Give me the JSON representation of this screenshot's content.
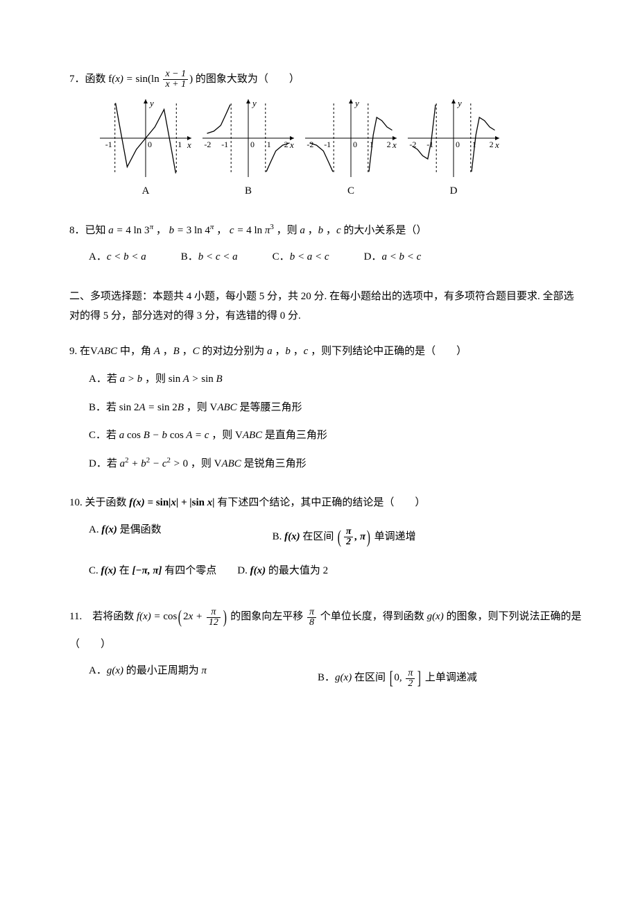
{
  "q7": {
    "prefix": "7．函数 ",
    "fn_lhs": "f(x) = sin(ln",
    "frac_num": "x − 1",
    "frac_den": "x + 1",
    "fn_rhs": ") 的图象大致为（　　）",
    "charts": {
      "width": 140,
      "height": 120,
      "axis_color": "#000000",
      "curve_color": "#000000",
      "asymptote_dash": "3,3",
      "panels": [
        {
          "label": "A",
          "x_ticks": [
            {
              "v": -1,
              "t": "-1"
            },
            {
              "v": 1,
              "t": "1"
            }
          ],
          "asymptotes": [
            -1,
            1
          ],
          "x_range": [
            -1.4,
            1.4
          ],
          "curve": [
            {
              "x": -0.98,
              "y": 1.1
            },
            {
              "x": -0.85,
              "y": 0.4
            },
            {
              "x": -0.6,
              "y": -0.9
            },
            {
              "x": -0.3,
              "y": -0.35
            },
            {
              "x": 0,
              "y": 0
            },
            {
              "x": 0.3,
              "y": 0.35
            },
            {
              "x": 0.6,
              "y": 0.9
            },
            {
              "x": 0.85,
              "y": -0.4
            },
            {
              "x": 0.98,
              "y": -1.1
            }
          ]
        },
        {
          "label": "B",
          "x_ticks": [
            {
              "v": -2,
              "t": "-2"
            },
            {
              "v": -1,
              "t": "-1"
            },
            {
              "v": 1,
              "t": "1"
            },
            {
              "v": 2,
              "t": "2"
            }
          ],
          "asymptotes": [
            -1,
            1
          ],
          "x_range": [
            -2.5,
            2.5
          ],
          "left_curve": [
            {
              "x": -2.4,
              "y": 0.15
            },
            {
              "x": -2.0,
              "y": 0.22
            },
            {
              "x": -1.6,
              "y": 0.4
            },
            {
              "x": -1.3,
              "y": 0.75
            },
            {
              "x": -1.05,
              "y": 1.05
            }
          ],
          "right_curve": [
            {
              "x": 1.05,
              "y": -1.05
            },
            {
              "x": 1.3,
              "y": -0.75
            },
            {
              "x": 1.6,
              "y": -0.4
            },
            {
              "x": 2.0,
              "y": -0.22
            },
            {
              "x": 2.4,
              "y": -0.15
            }
          ]
        },
        {
          "label": "C",
          "x_ticks": [
            {
              "v": -2,
              "t": "-2"
            },
            {
              "v": -1,
              "t": "-1"
            },
            {
              "v": 1,
              "t": "1"
            },
            {
              "v": 2,
              "t": "2"
            }
          ],
          "asymptotes": [
            -1,
            1
          ],
          "x_range": [
            -2.5,
            2.5
          ],
          "left_curve": [
            {
              "x": -2.4,
              "y": -0.15
            },
            {
              "x": -2.0,
              "y": -0.22
            },
            {
              "x": -1.6,
              "y": -0.4
            },
            {
              "x": -1.3,
              "y": -0.75
            },
            {
              "x": -1.05,
              "y": -1.05
            }
          ],
          "right_curve": [
            {
              "x": 1.05,
              "y": -1.05
            },
            {
              "x": 1.3,
              "y": 0.1
            },
            {
              "x": 1.5,
              "y": 0.65
            },
            {
              "x": 1.8,
              "y": 0.55
            },
            {
              "x": 2.1,
              "y": 0.35
            },
            {
              "x": 2.4,
              "y": 0.25
            }
          ]
        },
        {
          "label": "D",
          "x_ticks": [
            {
              "v": -2,
              "t": "-2"
            },
            {
              "v": -1,
              "t": "-1"
            },
            {
              "v": 1,
              "t": "1"
            },
            {
              "v": 2,
              "t": "2"
            }
          ],
          "asymptotes": [
            -1,
            1
          ],
          "x_range": [
            -2.5,
            2.5
          ],
          "left_curve": [
            {
              "x": -2.4,
              "y": -0.25
            },
            {
              "x": -2.1,
              "y": -0.35
            },
            {
              "x": -1.8,
              "y": -0.55
            },
            {
              "x": -1.5,
              "y": -0.65
            },
            {
              "x": -1.3,
              "y": -0.1
            },
            {
              "x": -1.05,
              "y": 1.05
            }
          ],
          "right_curve": [
            {
              "x": 1.05,
              "y": -1.05
            },
            {
              "x": 1.3,
              "y": 0.1
            },
            {
              "x": 1.5,
              "y": 0.65
            },
            {
              "x": 1.8,
              "y": 0.55
            },
            {
              "x": 2.1,
              "y": 0.35
            },
            {
              "x": 2.4,
              "y": 0.25
            }
          ]
        }
      ]
    }
  },
  "q8": {
    "text_pre": "8．已知 ",
    "a": "a = 4 ln 3^π",
    "b": "b = 3 ln 4^π",
    "c": "c = 4 ln π^3",
    "text_post": "，则 a ，b ，c 的大小关系是（）",
    "opts": {
      "A": "c < b < a",
      "B": "b < c < a",
      "C": "b < a < c",
      "D": "a < b < c"
    }
  },
  "section2": "二、多项选择题：本题共 4 小题，每小题 5 分，共 20 分. 在每小题给出的选项中，有多项符合题目要求. 全部选对的得 5 分，部分选对的得 3 分，有选错的得 0 分.",
  "q9": {
    "text_pre": "9. 在",
    "tri": "∨ABC",
    "text_mid": " 中，角 A ，B ，C 的对边分别为 a ，b ，c ，则下列结论中正确的是（　　）",
    "A": {
      "pre": "A．若 ",
      "expr": "a > b",
      "post": " ，则 ",
      "expr2": "sin A > sin B"
    },
    "B": {
      "pre": "B．若 ",
      "expr": "sin 2A = sin 2B",
      "post": " ，则 ",
      "tri": "∨ABC",
      "post2": " 是等腰三角形"
    },
    "C": {
      "pre": "C．若 ",
      "expr": "a cos B − b cos A = c",
      "post": " ，则 ",
      "tri": "∨ABC",
      "post2": " 是直角三角形"
    },
    "D": {
      "pre": "D．若 ",
      "expr": "a² + b² − c² > 0",
      "post": " ，则 ",
      "tri": "∨ABC",
      "post2": " 是锐角三角形"
    }
  },
  "q10": {
    "text_pre": "10. 关于函数 ",
    "fn": "f(x) = sin|x| + |sin x|",
    "text_post": " 有下述四个结论，其中正确的结论是（　　）",
    "A": {
      "pre": "A. ",
      "expr": "f(x)",
      "post": " 是偶函数"
    },
    "B": {
      "pre": "B. ",
      "expr": "f(x)",
      "post": " 在区间 ",
      "int_l": "π",
      "int_l_den": "2",
      "int_r": "π",
      "post2": " 单调递增"
    },
    "C": {
      "pre": "C. ",
      "expr": "f(x)",
      "post": " 在 ",
      "int": "[−π, π]",
      "post2": " 有四个零点"
    },
    "D": {
      "pre": "D. ",
      "expr": "f(x)",
      "post": " 的最大值为 2"
    }
  },
  "q11": {
    "text_pre": "11.　若将函数 ",
    "fn_l": "f(x) = cos",
    "arg_2x": "2x + ",
    "arg_num": "π",
    "arg_den": "12",
    "text_mid": " 的图象向左平移 ",
    "shift_num": "π",
    "shift_den": "8",
    "text_mid2": " 个单位长度，得到函数 ",
    "gx": "g(x)",
    "text_post": " 的图象，则下列说法正确的是（　　）",
    "A": {
      "pre": "A．",
      "expr": "g(x)",
      "post": " 的最小正周期为 ",
      "val": "π"
    },
    "B": {
      "pre": "B．",
      "expr": "g(x)",
      "post": " 在区间 ",
      "int_l": "0",
      "int_r_num": "π",
      "int_r_den": "2",
      "post2": " 上单调递减"
    }
  }
}
